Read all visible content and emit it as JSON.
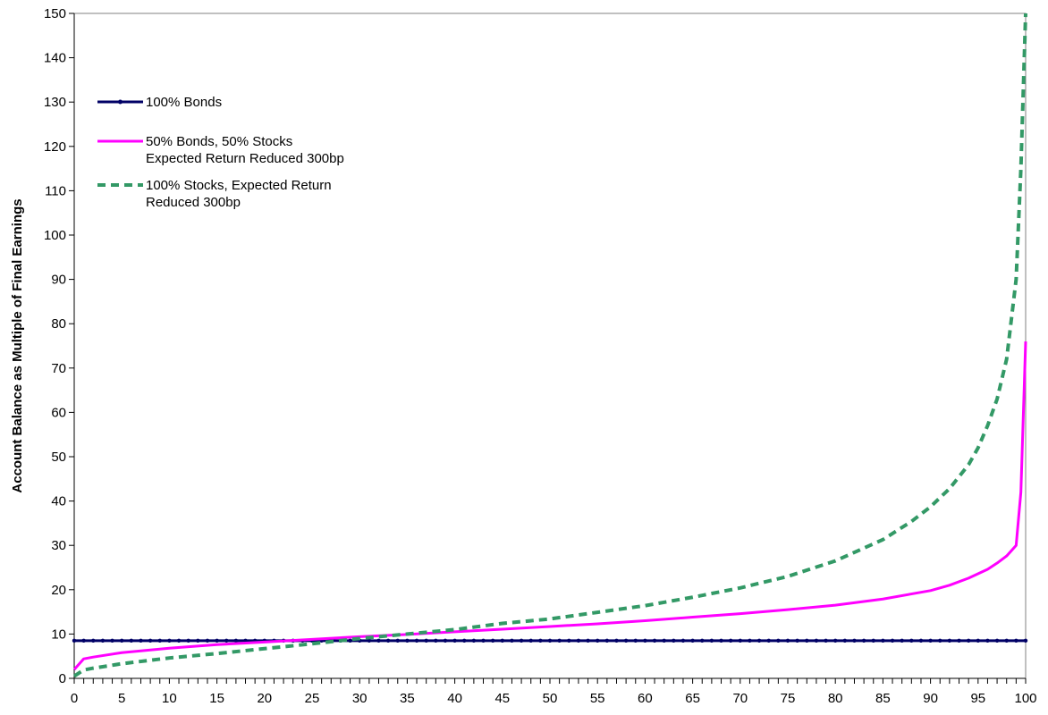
{
  "chart_data": {
    "type": "line",
    "title": "",
    "xlabel": "",
    "ylabel": "Account Balance as Multiple of Final Earnings",
    "xlim": [
      0,
      100
    ],
    "ylim": [
      0,
      150
    ],
    "x_major_ticks": [
      0,
      5,
      10,
      15,
      20,
      25,
      30,
      35,
      40,
      45,
      50,
      55,
      60,
      65,
      70,
      75,
      80,
      85,
      90,
      95,
      100
    ],
    "x_minor_step": 1,
    "y_ticks": [
      0,
      10,
      20,
      30,
      40,
      50,
      60,
      70,
      80,
      90,
      100,
      110,
      120,
      130,
      140,
      150
    ],
    "grid": false,
    "legend_position": "top-left",
    "series": [
      {
        "name": "100% Bonds",
        "color": "#000066",
        "style": "solid-markers",
        "x": [
          0,
          100
        ],
        "y": [
          8.5,
          8.5
        ]
      },
      {
        "name": "50% Bonds, 50% Stocks\nExpected Return Reduced 300bp",
        "color": "#FF00FF",
        "style": "solid",
        "x": [
          0,
          1,
          2,
          5,
          10,
          15,
          20,
          25,
          30,
          35,
          40,
          45,
          50,
          55,
          60,
          65,
          70,
          75,
          80,
          85,
          90,
          92,
          94,
          96,
          97,
          98,
          99,
          99.5,
          100
        ],
        "y": [
          2,
          4.4,
          4.8,
          5.8,
          6.8,
          7.6,
          8.2,
          8.8,
          9.4,
          9.9,
          10.5,
          11.1,
          11.7,
          12.3,
          13,
          13.8,
          14.6,
          15.5,
          16.5,
          17.9,
          19.8,
          21,
          22.6,
          24.6,
          26,
          27.6,
          30,
          42,
          76
        ]
      },
      {
        "name": "100% Stocks, Expected Return\nReduced 300bp",
        "color": "#339966",
        "style": "dashed",
        "x": [
          0,
          1,
          2,
          5,
          10,
          15,
          20,
          25,
          30,
          35,
          40,
          45,
          50,
          55,
          60,
          65,
          70,
          75,
          80,
          85,
          88,
          90,
          92,
          94,
          95,
          96,
          97,
          98,
          99,
          99.5,
          100
        ],
        "y": [
          0.5,
          1.9,
          2.3,
          3.3,
          4.6,
          5.6,
          6.7,
          7.8,
          9,
          10,
          11,
          12.4,
          13.4,
          14.9,
          16.4,
          18.3,
          20.4,
          23,
          26.5,
          31.3,
          35.4,
          38.7,
          42.8,
          48.2,
          52,
          57,
          63,
          72,
          90,
          115,
          150
        ]
      }
    ]
  }
}
